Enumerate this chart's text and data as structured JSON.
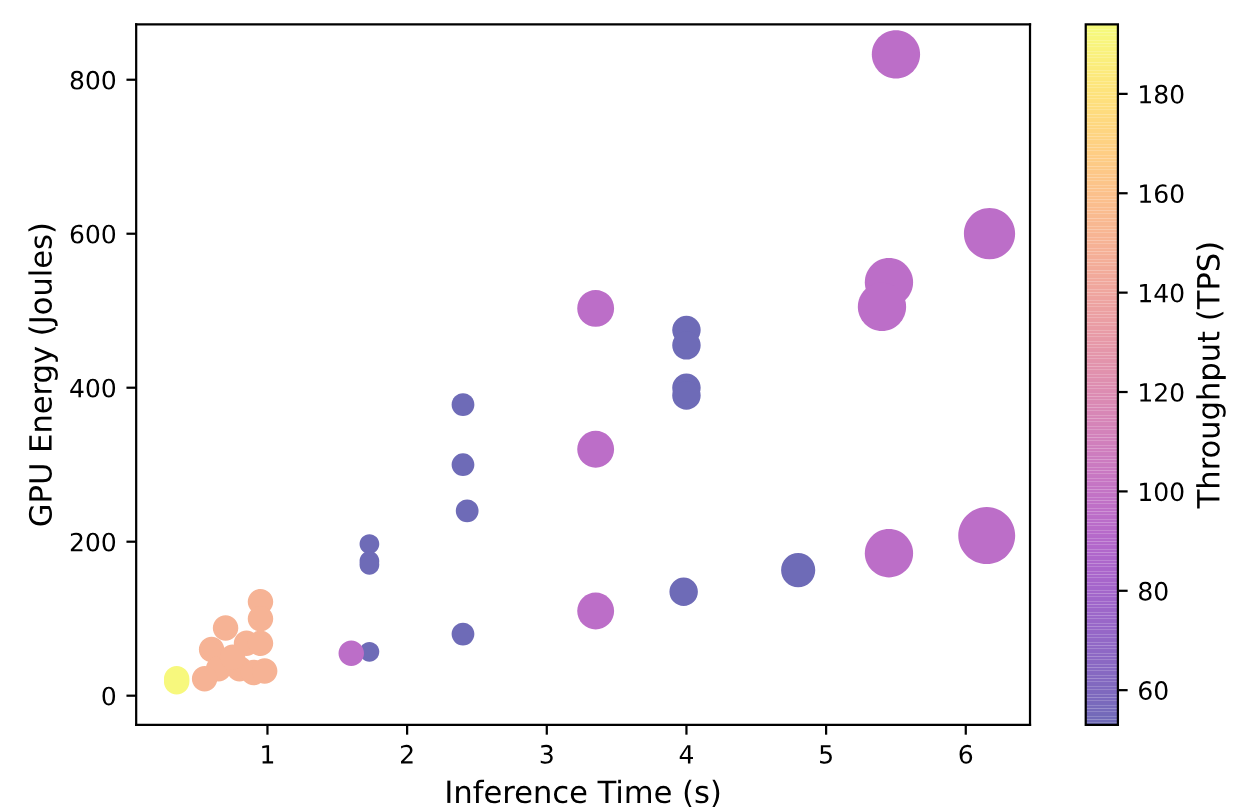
{
  "chart_data": {
    "type": "bubble",
    "xlabel": "Inference Time (s)",
    "ylabel": "GPU Energy (Joules)",
    "clabel": "Throughput (TPS)",
    "xlim": [
      0.06,
      6.46
    ],
    "ylim": [
      -38,
      872
    ],
    "xticks": [
      1,
      2,
      3,
      4,
      5,
      6
    ],
    "yticks": [
      0,
      200,
      400,
      600,
      800
    ],
    "clim": [
      53,
      194
    ],
    "cticks": [
      60,
      80,
      100,
      120,
      140,
      160,
      180
    ],
    "grid": false,
    "x": [
      2.4,
      2.4,
      2.43,
      1.73,
      1.73,
      1.73,
      4.0,
      4.0,
      4.0,
      4.0,
      1.73,
      2.4,
      3.98,
      4.8,
      3.35,
      3.35,
      5.5,
      6.17,
      5.45,
      5.4,
      1.6,
      3.35,
      5.45,
      6.15,
      0.95,
      0.7,
      0.95,
      0.6,
      0.85,
      0.95,
      0.65,
      0.8,
      0.9,
      0.98,
      0.55,
      0.75,
      0.35,
      0.35
    ],
    "values": [
      378,
      300,
      240,
      197,
      175,
      170,
      475,
      455,
      400,
      390,
      57,
      80,
      135,
      163,
      503,
      320,
      833,
      600,
      537,
      505,
      55,
      110,
      185,
      208,
      122,
      88,
      100,
      60,
      68,
      68,
      35,
      35,
      30,
      32,
      22,
      50,
      22,
      18
    ],
    "sizes": [
      0.16,
      0.16,
      0.16,
      0.12,
      0.12,
      0.12,
      0.25,
      0.25,
      0.25,
      0.25,
      0.12,
      0.16,
      0.25,
      0.36,
      0.42,
      0.42,
      0.72,
      0.81,
      0.72,
      0.72,
      0.2,
      0.42,
      0.72,
      1,
      0.2,
      0.2,
      0.2,
      0.2,
      0.2,
      0.2,
      0.2,
      0.2,
      0.2,
      0.2,
      0.2,
      0.2,
      0.2,
      0.2
    ],
    "cvalues": [
      53,
      53,
      53,
      53,
      53,
      53,
      53,
      53,
      53,
      53,
      53,
      53,
      53,
      53,
      95,
      95,
      95,
      95,
      95,
      95,
      95,
      95,
      95,
      95,
      150,
      150,
      150,
      150,
      150,
      150,
      150,
      150,
      150,
      150,
      150,
      150,
      192,
      192
    ]
  }
}
